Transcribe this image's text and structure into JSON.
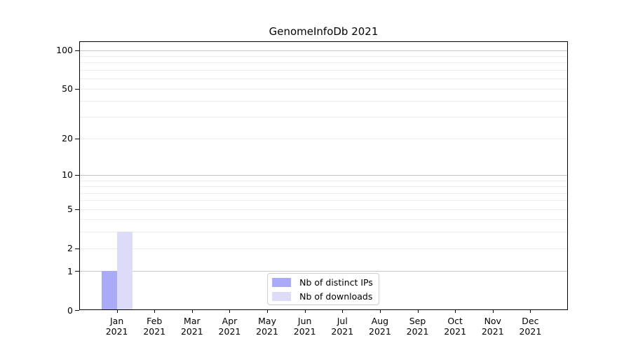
{
  "page": {
    "background": "#ffffff"
  },
  "chart_data": {
    "type": "bar",
    "title": "GenomeInfoDb 2021",
    "xlabel": "",
    "ylabel": "",
    "categories": [
      "Jan",
      "Feb",
      "Mar",
      "Apr",
      "May",
      "Jun",
      "Jul",
      "Aug",
      "Sep",
      "Oct",
      "Nov",
      "Dec"
    ],
    "category_year": "2021",
    "series": [
      {
        "name": "Nb of distinct IPs",
        "color": "#aaabf7",
        "values": [
          1,
          0,
          0,
          0,
          0,
          0,
          0,
          0,
          0,
          0,
          0,
          0
        ]
      },
      {
        "name": "Nb of downloads",
        "color": "#dcdcf9",
        "values": [
          3,
          0,
          0,
          0,
          0,
          0,
          0,
          0,
          0,
          0,
          0,
          0
        ]
      }
    ],
    "yscale": "log1p",
    "yticks": [
      0,
      1,
      2,
      5,
      10,
      20,
      50,
      100
    ],
    "ylim": [
      0,
      117
    ],
    "grid": {
      "on": true,
      "major_values": [
        1,
        10,
        100
      ],
      "minor_values": [
        2,
        3,
        4,
        5,
        6,
        7,
        8,
        9,
        20,
        30,
        40,
        50,
        60,
        70,
        80,
        90
      ],
      "major_color": "#c8c8c8",
      "minor_color": "#ededed"
    },
    "legend": {
      "position": "lower-center-inside"
    },
    "colors": {
      "spine": "#000000",
      "text": "#000000",
      "legend_border": "#cccccc"
    }
  }
}
